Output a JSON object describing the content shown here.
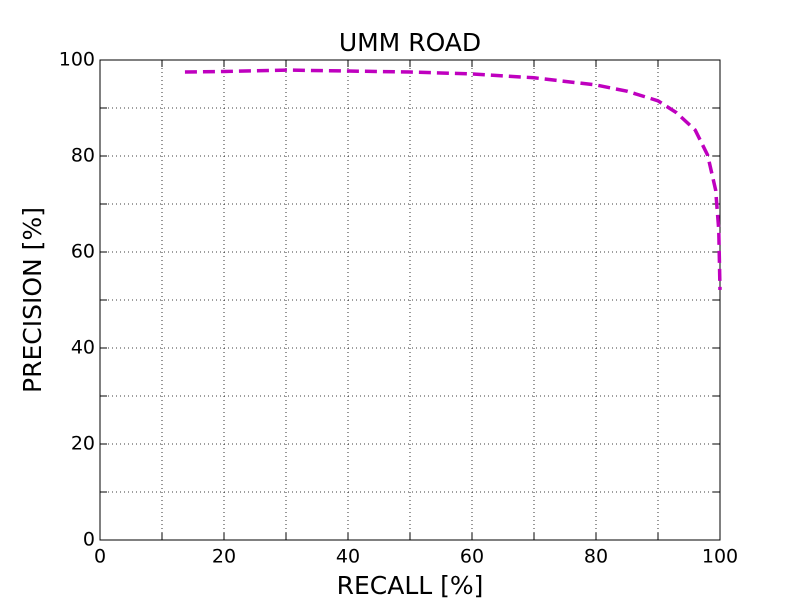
{
  "chart_data": {
    "type": "line",
    "title": "UMM ROAD",
    "x_label": "RECALL [%]",
    "y_label": "PRECISION [%]",
    "x": [
      13.7,
      20,
      30,
      40,
      50,
      60,
      70,
      80,
      85,
      90,
      93,
      96,
      98,
      99.3,
      99.8,
      100
    ],
    "series": [
      {
        "color": "#bf00bf",
        "line_style": "dashed",
        "values": [
          97.5,
          97.6,
          97.9,
          97.7,
          97.5,
          97.1,
          96.3,
          94.8,
          93.5,
          91.5,
          89,
          85.4,
          80.2,
          72.9,
          64.6,
          52.1
        ]
      }
    ],
    "xlim": [
      0,
      100
    ],
    "ylim": [
      0,
      100
    ],
    "xticks": [
      0,
      20,
      40,
      60,
      80,
      100
    ],
    "yticks": [
      0,
      20,
      40,
      60,
      80,
      100
    ],
    "minor_xticks": [
      10,
      30,
      50,
      70,
      90
    ],
    "minor_yticks": [
      10,
      30,
      50,
      70,
      90
    ],
    "grid": true
  }
}
